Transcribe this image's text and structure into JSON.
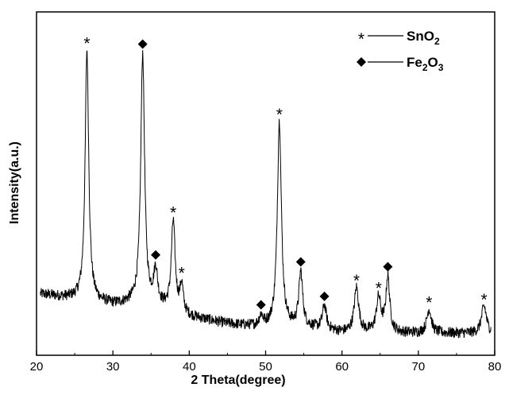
{
  "chart_data": {
    "type": "line",
    "title": "",
    "xlabel": "2 Theta(degree)",
    "ylabel": "Intensity(a.u.)",
    "xlim": [
      20,
      80
    ],
    "ylim": [
      0,
      1
    ],
    "xticks": [
      20,
      30,
      40,
      50,
      60,
      70,
      80
    ],
    "y_tick_labels": false,
    "grid": false,
    "legend_position": "top-right",
    "line_color": "#000000",
    "legend": [
      {
        "marker": "*",
        "text": "SnO",
        "subscript": "2"
      },
      {
        "marker": "diamond",
        "text_parts": [
          "Fe",
          "2",
          "O",
          "3"
        ]
      }
    ],
    "series": [
      {
        "baseline": [
          [
            20.5,
            0.178
          ],
          [
            25,
            0.164
          ],
          [
            30,
            0.147
          ],
          [
            33,
            0.15
          ],
          [
            36,
            0.14
          ],
          [
            40,
            0.112
          ],
          [
            45,
            0.091
          ],
          [
            49,
            0.082
          ],
          [
            52,
            0.08
          ],
          [
            56,
            0.079
          ],
          [
            60,
            0.066
          ],
          [
            65,
            0.065
          ],
          [
            70,
            0.064
          ],
          [
            75,
            0.064
          ],
          [
            79.5,
            0.062
          ]
        ],
        "peaks": [
          {
            "x": 26.6,
            "height": 0.73,
            "width": 0.28
          },
          {
            "x": 33.9,
            "height": 0.73,
            "width": 0.3
          },
          {
            "x": 35.6,
            "height": 0.1,
            "width": 0.3
          },
          {
            "x": 37.9,
            "height": 0.26,
            "width": 0.3
          },
          {
            "x": 39.0,
            "height": 0.08,
            "width": 0.25
          },
          {
            "x": 49.4,
            "height": 0.03,
            "width": 0.3
          },
          {
            "x": 51.8,
            "height": 0.6,
            "width": 0.32
          },
          {
            "x": 54.6,
            "height": 0.16,
            "width": 0.3
          },
          {
            "x": 57.7,
            "height": 0.07,
            "width": 0.3
          },
          {
            "x": 61.9,
            "height": 0.13,
            "width": 0.35
          },
          {
            "x": 64.8,
            "height": 0.1,
            "width": 0.35
          },
          {
            "x": 66.0,
            "height": 0.16,
            "width": 0.3
          },
          {
            "x": 71.4,
            "height": 0.07,
            "width": 0.35
          },
          {
            "x": 78.6,
            "height": 0.08,
            "width": 0.4
          }
        ]
      }
    ],
    "annotations": [
      {
        "x": 26.6,
        "marker": "*"
      },
      {
        "x": 33.9,
        "marker": "diamond"
      },
      {
        "x": 35.6,
        "marker": "diamond"
      },
      {
        "x": 37.9,
        "marker": "*"
      },
      {
        "x": 39.0,
        "marker": "*"
      },
      {
        "x": 49.4,
        "marker": "diamond"
      },
      {
        "x": 51.8,
        "marker": "*"
      },
      {
        "x": 54.6,
        "marker": "diamond"
      },
      {
        "x": 57.7,
        "marker": "diamond"
      },
      {
        "x": 61.9,
        "marker": "*"
      },
      {
        "x": 64.8,
        "marker": "*"
      },
      {
        "x": 66.0,
        "marker": "diamond"
      },
      {
        "x": 71.4,
        "marker": "*"
      },
      {
        "x": 78.6,
        "marker": "*"
      }
    ]
  }
}
